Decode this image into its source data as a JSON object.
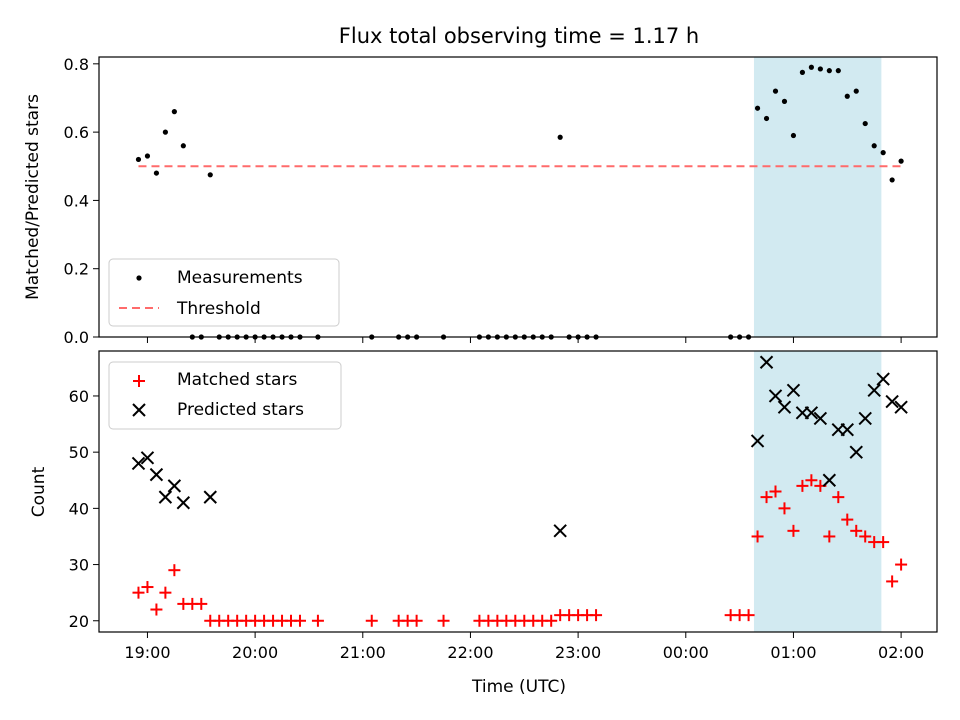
{
  "chart_data": [
    {
      "type": "scatter",
      "title": "Flux total observing time = 1.17 h",
      "xlabel": "",
      "ylabel": "Matched/Predicted stars",
      "xlim": [
        "18:33",
        "02:20"
      ],
      "ylim": [
        0,
        0.82
      ],
      "xticks": [
        "19:00",
        "20:00",
        "21:00",
        "22:00",
        "23:00",
        "00:00",
        "01:00",
        "02:00"
      ],
      "yticks": [
        "0.0",
        "0.2",
        "0.4",
        "0.6",
        "0.8"
      ],
      "shaded_interval": {
        "start": "00:38",
        "end": "01:49",
        "color": "#add8e6"
      },
      "threshold": {
        "name": "Threshold",
        "value": 0.5,
        "start": "18:55",
        "end": "02:00",
        "color": "#ff6b6b",
        "style": "dashed"
      },
      "legend": {
        "placement": "lower-left",
        "entries": [
          "Measurements",
          "Threshold"
        ]
      },
      "series": [
        {
          "name": "Measurements",
          "marker": "dot",
          "color": "#000000",
          "x": [
            "18:55",
            "19:00",
            "19:05",
            "19:10",
            "19:15",
            "19:20",
            "19:25",
            "19:30",
            "19:35",
            "19:40",
            "19:45",
            "19:50",
            "19:55",
            "20:00",
            "20:05",
            "20:10",
            "20:15",
            "20:20",
            "20:25",
            "20:35",
            "21:05",
            "21:20",
            "21:25",
            "21:30",
            "21:45",
            "22:05",
            "22:10",
            "22:15",
            "22:20",
            "22:25",
            "22:30",
            "22:35",
            "22:40",
            "22:45",
            "22:50",
            "22:55",
            "23:00",
            "23:05",
            "23:10",
            "00:25",
            "00:30",
            "00:35",
            "00:40",
            "00:45",
            "00:50",
            "00:55",
            "01:00",
            "01:05",
            "01:10",
            "01:15",
            "01:20",
            "01:25",
            "01:30",
            "01:35",
            "01:40",
            "01:45",
            "01:50",
            "01:55",
            "02:00"
          ],
          "y": [
            0.52,
            0.53,
            0.48,
            0.6,
            0.66,
            0.56,
            0.0,
            0.0,
            0.475,
            0.0,
            0.0,
            0.0,
            0.0,
            0.0,
            0.0,
            0.0,
            0.0,
            0.0,
            0.0,
            0.0,
            0.0,
            0.0,
            0.0,
            0.0,
            0.0,
            0.0,
            0.0,
            0.0,
            0.0,
            0.0,
            0.0,
            0.0,
            0.0,
            0.0,
            0.585,
            0.0,
            0.0,
            0.0,
            0.0,
            0.0,
            0.0,
            0.0,
            0.67,
            0.64,
            0.72,
            0.69,
            0.59,
            0.775,
            0.79,
            0.785,
            0.78,
            0.78,
            0.705,
            0.72,
            0.625,
            0.56,
            0.54,
            0.46,
            0.515
          ]
        }
      ]
    },
    {
      "type": "scatter",
      "title": "",
      "xlabel": "Time (UTC)",
      "ylabel": "Count",
      "xlim": [
        "18:33",
        "02:20"
      ],
      "ylim": [
        18,
        68
      ],
      "xticks": [
        "19:00",
        "20:00",
        "21:00",
        "22:00",
        "23:00",
        "00:00",
        "01:00",
        "02:00"
      ],
      "yticks": [
        "20",
        "30",
        "40",
        "50",
        "60"
      ],
      "shaded_interval": {
        "start": "00:38",
        "end": "01:49",
        "color": "#add8e6"
      },
      "legend": {
        "placement": "upper-left",
        "entries": [
          "Matched stars",
          "Predicted stars"
        ]
      },
      "series": [
        {
          "name": "Matched stars",
          "marker": "plus",
          "color": "#ff0000",
          "x": [
            "18:55",
            "19:00",
            "19:05",
            "19:10",
            "19:15",
            "19:20",
            "19:25",
            "19:30",
            "19:35",
            "19:40",
            "19:45",
            "19:50",
            "19:55",
            "20:00",
            "20:05",
            "20:10",
            "20:15",
            "20:20",
            "20:25",
            "20:35",
            "21:05",
            "21:20",
            "21:25",
            "21:30",
            "21:45",
            "22:05",
            "22:10",
            "22:15",
            "22:20",
            "22:25",
            "22:30",
            "22:35",
            "22:40",
            "22:45",
            "22:50",
            "22:55",
            "23:00",
            "23:05",
            "23:10",
            "00:25",
            "00:30",
            "00:35",
            "00:40",
            "00:45",
            "00:50",
            "00:55",
            "01:00",
            "01:05",
            "01:10",
            "01:15",
            "01:20",
            "01:25",
            "01:30",
            "01:35",
            "01:40",
            "01:45",
            "01:50",
            "01:55",
            "02:00"
          ],
          "y": [
            25,
            26,
            22,
            25,
            29,
            23,
            23,
            23,
            20,
            20,
            20,
            20,
            20,
            20,
            20,
            20,
            20,
            20,
            20,
            20,
            20,
            20,
            20,
            20,
            20,
            20,
            20,
            20,
            20,
            20,
            20,
            20,
            20,
            20,
            21,
            21,
            21,
            21,
            21,
            21,
            21,
            21,
            35,
            42,
            43,
            40,
            36,
            44,
            45,
            44,
            35,
            42,
            38,
            36,
            35,
            34,
            34,
            27,
            30
          ]
        },
        {
          "name": "Predicted stars",
          "marker": "x",
          "color": "#000000",
          "x": [
            "18:55",
            "19:00",
            "19:05",
            "19:10",
            "19:15",
            "19:20",
            "19:35",
            "22:50",
            "00:40",
            "00:45",
            "00:50",
            "00:55",
            "01:00",
            "01:05",
            "01:10",
            "01:15",
            "01:20",
            "01:25",
            "01:30",
            "01:35",
            "01:40",
            "01:45",
            "01:50",
            "01:55",
            "02:00"
          ],
          "y": [
            48,
            49,
            46,
            42,
            44,
            41,
            42,
            36,
            52,
            66,
            60,
            58,
            61,
            57,
            57,
            56,
            45,
            54,
            54,
            50,
            56,
            61,
            63,
            59,
            58
          ]
        }
      ]
    }
  ]
}
